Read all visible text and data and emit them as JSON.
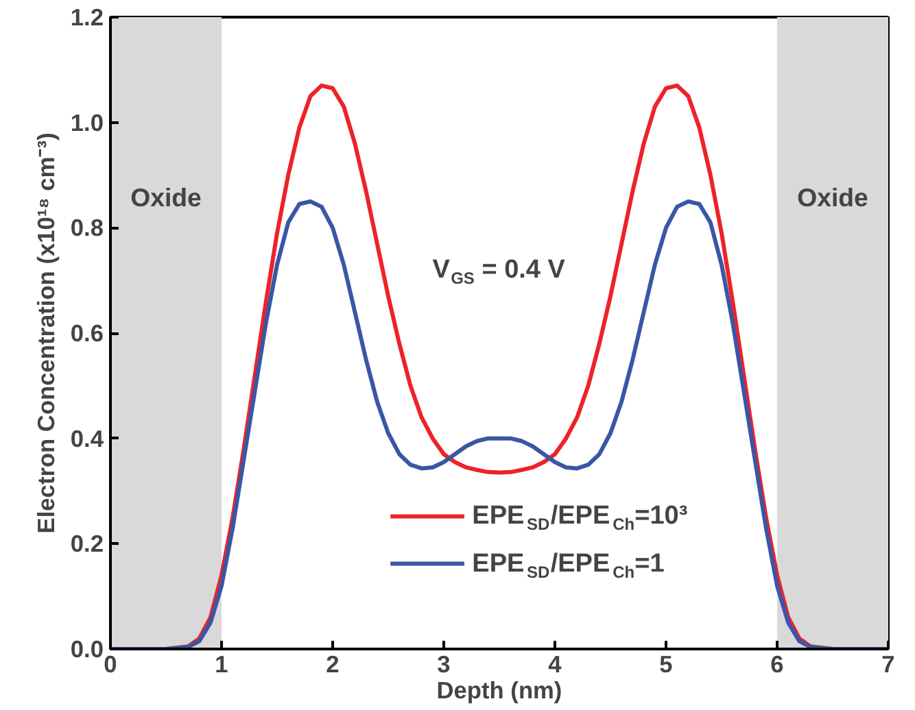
{
  "chart_data": {
    "type": "line",
    "xlabel": "Depth (nm)",
    "ylabel": "Electron Concentration (x10¹⁸ cm⁻³)",
    "xlim": [
      0,
      7
    ],
    "ylim": [
      0,
      1.2
    ],
    "xticks": [
      0,
      1,
      2,
      3,
      4,
      5,
      6,
      7
    ],
    "yticks": [
      {
        "value": 0,
        "label": "0.0"
      },
      {
        "value": 0.2,
        "label": "0.2"
      },
      {
        "value": 0.4,
        "label": "0.4"
      },
      {
        "value": 0.6,
        "label": "0.6"
      },
      {
        "value": 0.8,
        "label": "0.8"
      },
      {
        "value": 1.0,
        "label": "1.0"
      },
      {
        "value": 1.2,
        "label": "1.2"
      }
    ],
    "x": [
      0,
      0.5,
      0.7,
      0.8,
      0.9,
      1.0,
      1.1,
      1.2,
      1.3,
      1.4,
      1.5,
      1.6,
      1.7,
      1.8,
      1.9,
      2.0,
      2.1,
      2.2,
      2.3,
      2.4,
      2.5,
      2.6,
      2.7,
      2.8,
      2.9,
      3.0,
      3.1,
      3.2,
      3.3,
      3.4,
      3.5,
      3.6,
      3.7,
      3.8,
      3.9,
      4.0,
      4.1,
      4.2,
      4.3,
      4.4,
      4.5,
      4.6,
      4.7,
      4.8,
      4.9,
      5.0,
      5.1,
      5.2,
      5.3,
      5.4,
      5.5,
      5.6,
      5.7,
      5.8,
      5.9,
      6.0,
      6.1,
      6.2,
      6.3,
      6.5,
      7.0
    ],
    "series": [
      {
        "name": "EPE$_{SD}$/EPE$_{Ch}$=10³",
        "color": "#ee2229",
        "values": [
          0,
          0,
          0.005,
          0.02,
          0.06,
          0.14,
          0.25,
          0.38,
          0.52,
          0.66,
          0.79,
          0.9,
          0.99,
          1.05,
          1.07,
          1.065,
          1.03,
          0.96,
          0.87,
          0.77,
          0.67,
          0.58,
          0.5,
          0.44,
          0.4,
          0.37,
          0.355,
          0.345,
          0.34,
          0.336,
          0.335,
          0.336,
          0.34,
          0.345,
          0.355,
          0.37,
          0.4,
          0.44,
          0.5,
          0.58,
          0.67,
          0.77,
          0.87,
          0.96,
          1.03,
          1.065,
          1.07,
          1.05,
          0.99,
          0.9,
          0.79,
          0.66,
          0.52,
          0.38,
          0.25,
          0.14,
          0.06,
          0.02,
          0.005,
          0,
          0
        ]
      },
      {
        "name": "EPE$_{SD}$/EPE$_{Ch}$=1",
        "color": "#3a56a5",
        "values": [
          0,
          0,
          0.004,
          0.015,
          0.05,
          0.12,
          0.23,
          0.36,
          0.49,
          0.62,
          0.73,
          0.81,
          0.845,
          0.85,
          0.84,
          0.8,
          0.73,
          0.64,
          0.55,
          0.47,
          0.41,
          0.37,
          0.35,
          0.343,
          0.345,
          0.355,
          0.37,
          0.385,
          0.395,
          0.4,
          0.4,
          0.4,
          0.395,
          0.385,
          0.37,
          0.355,
          0.345,
          0.343,
          0.35,
          0.37,
          0.41,
          0.47,
          0.55,
          0.64,
          0.73,
          0.8,
          0.84,
          0.85,
          0.845,
          0.81,
          0.73,
          0.62,
          0.49,
          0.36,
          0.23,
          0.12,
          0.05,
          0.015,
          0.004,
          0,
          0
        ]
      }
    ],
    "bands": [
      {
        "axis": "x",
        "from": 0,
        "to": 1,
        "label": "Oxide",
        "color": "#d9d9d9"
      },
      {
        "axis": "x",
        "from": 6,
        "to": 7,
        "label": "Oxide",
        "color": "#d9d9d9"
      }
    ],
    "annotations": [
      "V$_{GS}$ = 0.4 V"
    ],
    "legend": "bottom",
    "grid": false,
    "marker": "none",
    "line_style": "solid"
  }
}
